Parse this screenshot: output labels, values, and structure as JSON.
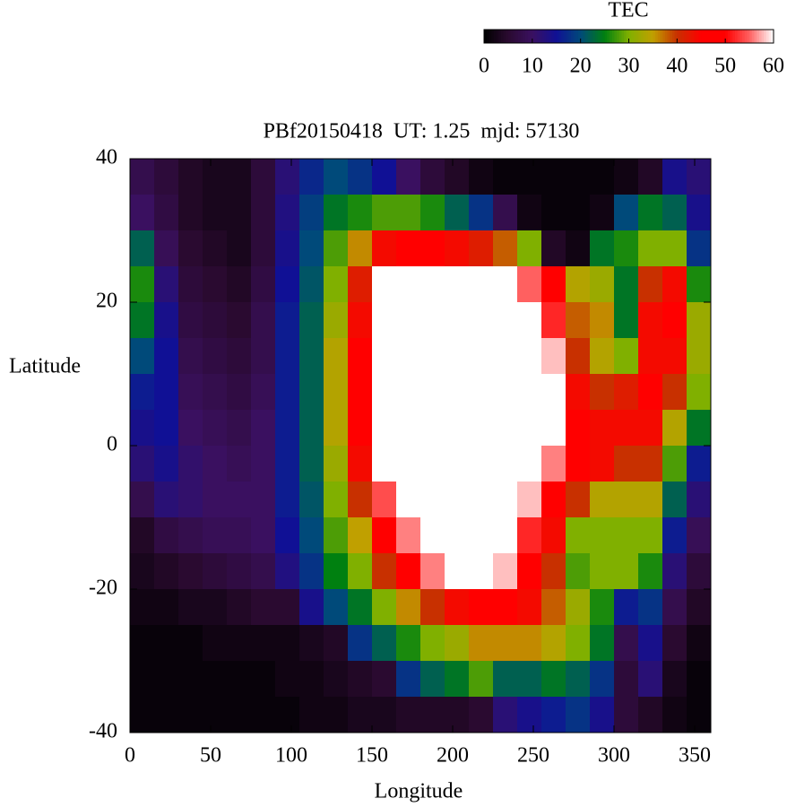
{
  "chart_data": {
    "type": "heatmap",
    "title": "PBf20150418  UT: 1.25  mjd: 57130",
    "x_label": "Longitude",
    "y_label": "Latitude",
    "colorbar_label": "TEC",
    "xlim": [
      0,
      360
    ],
    "xticks": [
      0,
      50,
      100,
      150,
      200,
      250,
      300,
      350
    ],
    "ylim": [
      -40,
      40
    ],
    "yticks": [
      -40,
      -20,
      0,
      20,
      40
    ],
    "zlim": [
      0,
      60
    ],
    "zticks": [
      0,
      10,
      20,
      30,
      40,
      50,
      60
    ],
    "colors": [
      "#000000",
      "#2a0a30",
      "#3a1060",
      "#101095",
      "#004a7a",
      "#008010",
      "#80b000",
      "#c0a000",
      "#c83000",
      "#ff0000",
      "#ff0000",
      "#ff6060",
      "#ffffff"
    ],
    "x": [
      7.5,
      22.5,
      37.5,
      52.5,
      67.5,
      82.5,
      97.5,
      112.5,
      127.5,
      142.5,
      157.5,
      172.5,
      187.5,
      202.5,
      217.5,
      232.5,
      247.5,
      262.5,
      277.5,
      292.5,
      307.5,
      322.5,
      337.5,
      352.5
    ],
    "y": [
      37.5,
      32.5,
      27.5,
      22.5,
      17.5,
      12.5,
      7.5,
      2.5,
      -2.5,
      -7.5,
      -12.5,
      -17.5,
      -22.5,
      -27.5,
      -32.5,
      -37.5
    ],
    "z": [
      [
        8,
        6,
        4,
        3,
        3,
        6,
        12,
        17,
        20,
        18,
        15,
        10,
        6,
        4,
        2,
        1,
        1,
        1,
        1,
        1,
        2,
        4,
        14,
        12
      ],
      [
        10,
        7,
        4,
        3,
        3,
        6,
        13,
        19,
        24,
        26,
        28,
        28,
        26,
        22,
        18,
        8,
        2,
        1,
        1,
        2,
        20,
        24,
        22,
        14
      ],
      [
        22,
        9,
        5,
        4,
        3,
        6,
        14,
        20,
        28,
        36,
        44,
        46,
        46,
        44,
        42,
        38,
        30,
        4,
        2,
        24,
        26,
        30,
        30,
        18
      ],
      [
        26,
        12,
        6,
        5,
        4,
        7,
        15,
        21,
        30,
        42,
        60,
        60,
        60,
        60,
        60,
        60,
        55,
        48,
        34,
        32,
        24,
        40,
        44,
        26
      ],
      [
        24,
        14,
        7,
        6,
        5,
        8,
        16,
        22,
        32,
        44,
        60,
        60,
        60,
        60,
        60,
        60,
        60,
        52,
        38,
        36,
        24,
        44,
        48,
        32
      ],
      [
        20,
        15,
        8,
        7,
        6,
        8,
        16,
        22,
        34,
        46,
        60,
        60,
        60,
        60,
        60,
        60,
        60,
        58,
        40,
        34,
        30,
        44,
        44,
        32
      ],
      [
        16,
        15,
        9,
        8,
        7,
        9,
        16,
        22,
        34,
        46,
        60,
        60,
        60,
        60,
        60,
        60,
        60,
        60,
        44,
        40,
        42,
        46,
        40,
        30
      ],
      [
        14,
        15,
        10,
        9,
        8,
        10,
        16,
        22,
        34,
        45,
        60,
        60,
        60,
        60,
        60,
        60,
        60,
        60,
        48,
        44,
        44,
        44,
        34,
        24
      ],
      [
        12,
        14,
        11,
        10,
        9,
        10,
        16,
        22,
        32,
        44,
        60,
        60,
        60,
        60,
        60,
        60,
        60,
        56,
        50,
        44,
        40,
        40,
        28,
        16
      ],
      [
        8,
        12,
        11,
        10,
        10,
        10,
        16,
        21,
        30,
        40,
        54,
        60,
        60,
        60,
        60,
        60,
        58,
        48,
        40,
        34,
        34,
        34,
        22,
        12
      ],
      [
        4,
        7,
        8,
        9,
        9,
        10,
        15,
        20,
        28,
        35,
        46,
        56,
        60,
        60,
        60,
        60,
        52,
        44,
        30,
        30,
        30,
        30,
        16,
        9
      ],
      [
        3,
        4,
        5,
        6,
        7,
        8,
        13,
        18,
        25,
        30,
        40,
        48,
        56,
        60,
        60,
        58,
        50,
        40,
        28,
        30,
        30,
        26,
        12,
        6
      ],
      [
        2,
        2,
        3,
        3,
        4,
        5,
        5,
        14,
        20,
        24,
        30,
        36,
        40,
        44,
        48,
        46,
        44,
        38,
        32,
        26,
        16,
        18,
        8,
        4
      ],
      [
        1,
        1,
        1,
        2,
        2,
        2,
        2,
        3,
        4,
        18,
        22,
        26,
        30,
        32,
        36,
        36,
        36,
        34,
        30,
        24,
        8,
        14,
        5,
        2
      ],
      [
        1,
        1,
        1,
        1,
        1,
        1,
        2,
        2,
        3,
        4,
        5,
        18,
        22,
        24,
        28,
        22,
        22,
        24,
        22,
        18,
        6,
        12,
        3,
        1
      ],
      [
        1,
        1,
        1,
        1,
        1,
        1,
        1,
        2,
        2,
        3,
        3,
        4,
        4,
        4,
        5,
        12,
        14,
        16,
        18,
        14,
        6,
        4,
        2,
        1
      ]
    ]
  }
}
